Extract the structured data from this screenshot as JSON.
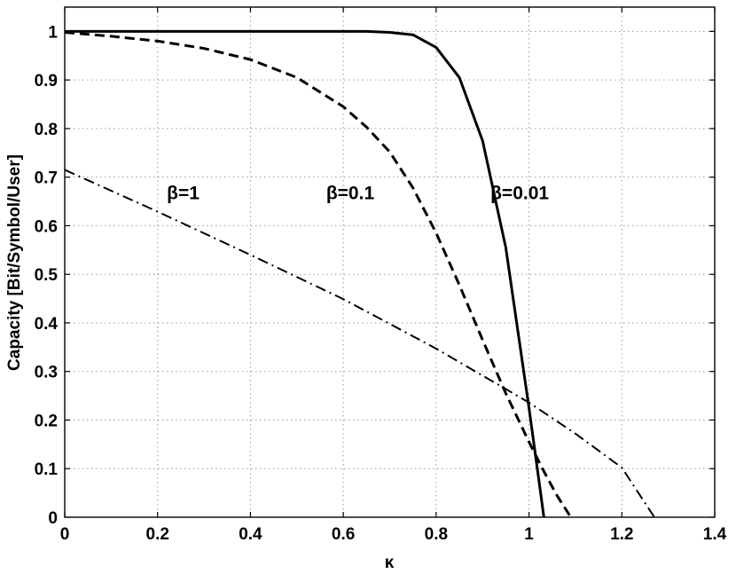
{
  "chart_data": {
    "type": "line",
    "title": "",
    "xlabel": "κ",
    "ylabel": "Capacity [Bit/Symbol/User]",
    "xlim": [
      0,
      1.4
    ],
    "ylim": [
      0,
      1.05
    ],
    "grid": true,
    "x_ticks": [
      "0",
      "0.2",
      "0.4",
      "0.6",
      "0.8",
      "1",
      "1.2",
      "1.4"
    ],
    "y_ticks": [
      "0",
      "0.1",
      "0.2",
      "0.3",
      "0.4",
      "0.5",
      "0.6",
      "0.7",
      "0.8",
      "0.9",
      "1"
    ],
    "series": [
      {
        "name": "β=0.01",
        "style": "solid",
        "points": [
          [
            0,
            1.0
          ],
          [
            0.2,
            1.0
          ],
          [
            0.4,
            1.0
          ],
          [
            0.6,
            1.0
          ],
          [
            0.65,
            1.0
          ],
          [
            0.7,
            0.998
          ],
          [
            0.75,
            0.993
          ],
          [
            0.8,
            0.967
          ],
          [
            0.85,
            0.905
          ],
          [
            0.9,
            0.775
          ],
          [
            0.95,
            0.555
          ],
          [
            1.0,
            0.225
          ],
          [
            1.025,
            0.05
          ],
          [
            1.032,
            0.0
          ]
        ]
      },
      {
        "name": "β=0.1",
        "style": "dashed",
        "points": [
          [
            0,
            0.998
          ],
          [
            0.1,
            0.99
          ],
          [
            0.2,
            0.98
          ],
          [
            0.3,
            0.965
          ],
          [
            0.4,
            0.942
          ],
          [
            0.5,
            0.905
          ],
          [
            0.6,
            0.845
          ],
          [
            0.65,
            0.803
          ],
          [
            0.7,
            0.752
          ],
          [
            0.75,
            0.678
          ],
          [
            0.8,
            0.585
          ],
          [
            0.85,
            0.478
          ],
          [
            0.9,
            0.365
          ],
          [
            0.95,
            0.255
          ],
          [
            1.0,
            0.155
          ],
          [
            1.03,
            0.098
          ],
          [
            1.06,
            0.045
          ],
          [
            1.09,
            0.0
          ]
        ]
      },
      {
        "name": "β=1",
        "style": "dashdot",
        "points": [
          [
            0,
            0.715
          ],
          [
            0.2,
            0.629
          ],
          [
            0.4,
            0.54
          ],
          [
            0.6,
            0.449
          ],
          [
            0.8,
            0.347
          ],
          [
            1.0,
            0.236
          ],
          [
            1.1,
            0.172
          ],
          [
            1.2,
            0.102
          ],
          [
            1.27,
            0.0
          ]
        ]
      }
    ],
    "annotations": [
      {
        "text": "β=1",
        "x": 0.255,
        "y": 0.655
      },
      {
        "text": "β=0.1",
        "x": 0.615,
        "y": 0.655
      },
      {
        "text": "β=0.01",
        "x": 0.98,
        "y": 0.655
      }
    ]
  }
}
